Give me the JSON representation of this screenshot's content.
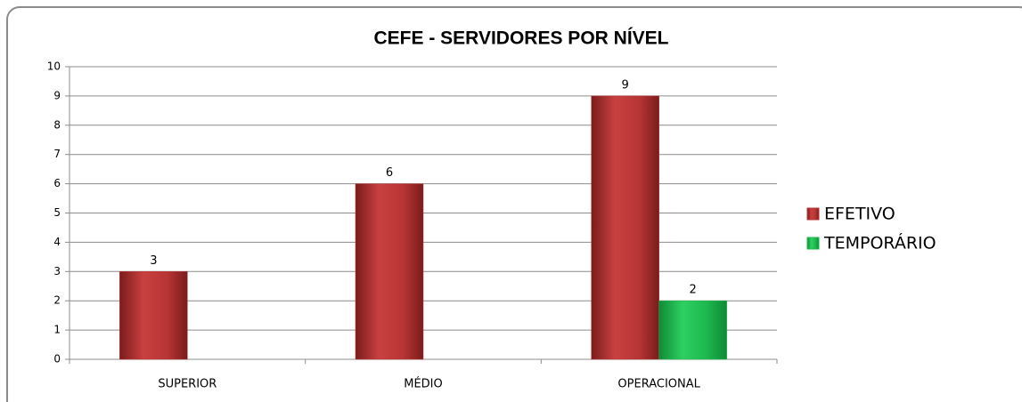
{
  "chart_data": {
    "type": "bar",
    "title": "CEFE - SERVIDORES POR NÍVEL",
    "categories": [
      "SUPERIOR",
      "MÉDIO",
      "OPERACIONAL"
    ],
    "series": [
      {
        "name": "EFETIVO",
        "color": "#b83535",
        "values": [
          3,
          6,
          9
        ]
      },
      {
        "name": "TEMPORÁRIO",
        "color": "#1db84f",
        "values": [
          null,
          null,
          2
        ]
      }
    ],
    "ylim": [
      0,
      10
    ],
    "yticks": [
      0,
      1,
      2,
      3,
      4,
      5,
      6,
      7,
      8,
      9,
      10
    ],
    "grid": true,
    "legend": "right"
  }
}
